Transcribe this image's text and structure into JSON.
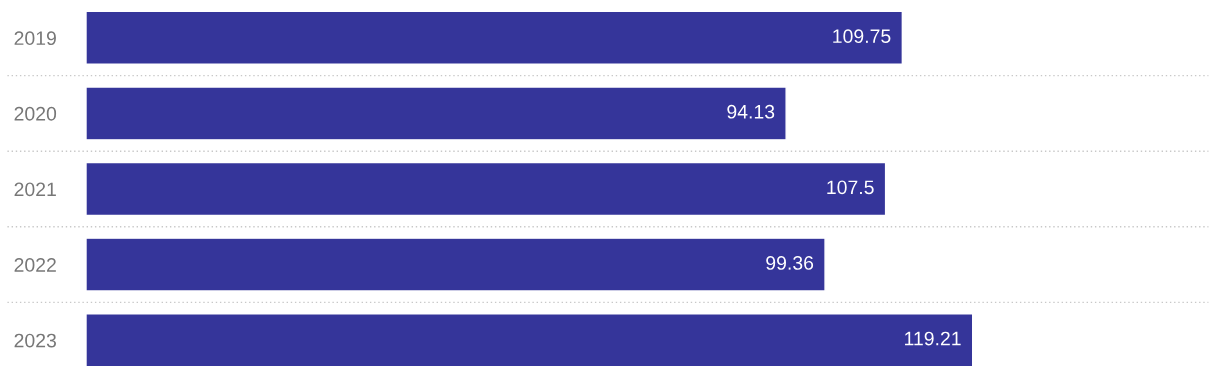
{
  "chart_data": {
    "type": "bar",
    "orientation": "horizontal",
    "categories": [
      "2019",
      "2020",
      "2021",
      "2022",
      "2023"
    ],
    "values": [
      109.75,
      94.13,
      107.5,
      99.36,
      119.21
    ],
    "color": "#35359a",
    "data_labels": true,
    "grid": "y",
    "tick_labels": "y"
  }
}
